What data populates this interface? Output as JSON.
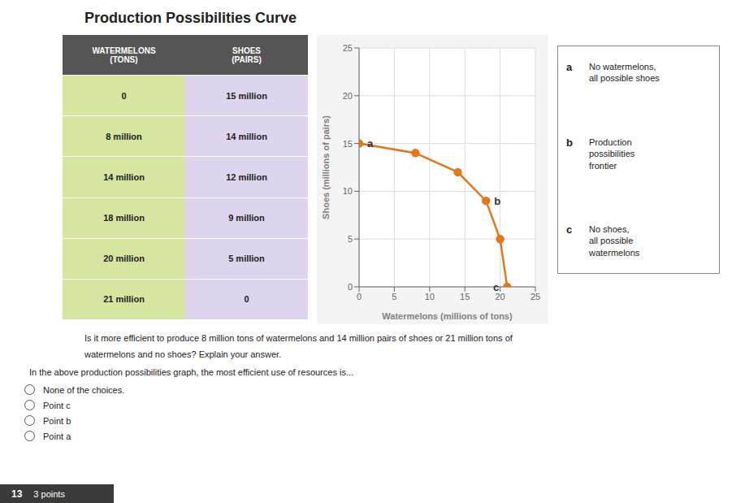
{
  "chart_data": {
    "type": "line",
    "title": "Production Possibilities Curve",
    "x": [
      0,
      8,
      14,
      18,
      20,
      21
    ],
    "values": [
      15,
      14,
      12,
      9,
      5,
      0
    ],
    "color": "#e07820",
    "marker": "circle",
    "xlabel": "Watermelons (millions of tons)",
    "ylabel": "Shoes (millions of pairs)",
    "xlim": [
      0,
      25
    ],
    "ylim": [
      0,
      25
    ],
    "xticks": [
      0,
      5,
      10,
      15,
      20,
      25
    ],
    "yticks": [
      0,
      5,
      10,
      15,
      20,
      25
    ],
    "grid": true,
    "annotations": [
      {
        "text": "a",
        "x": 0,
        "y": 15
      },
      {
        "text": "b",
        "x": 18,
        "y": 9
      },
      {
        "text": "c",
        "x": 21,
        "y": 0
      }
    ],
    "table": {
      "headers": [
        "WATERMELONS\n(TONS)",
        "SHOES\n(PAIRS)"
      ],
      "rows": [
        [
          "0",
          "15 million"
        ],
        [
          "8 million",
          "14 million"
        ],
        [
          "14 million",
          "12 million"
        ],
        [
          "18 million",
          "9 million"
        ],
        [
          "20 million",
          "5 million"
        ],
        [
          "21 million",
          "0"
        ]
      ]
    },
    "key": [
      {
        "label": "a",
        "text": "No watermelons,\nall possible shoes"
      },
      {
        "label": "b",
        "text": "Production\npossibilities\nfrontier"
      },
      {
        "label": "c",
        "text": "No shoes,\nall possible\nwatermelons"
      }
    ],
    "question": [
      "Is it more efficient to produce 8 million tons of watermelons and 14 million pairs of shoes or 21 million tons of",
      "watermelons and no shoes? Explain your answer."
    ],
    "instruction": "In the above production possibilities graph, the most efficient use of resources is...",
    "choices": [
      "None of the choices.",
      "Point c",
      "Point b",
      "Point a"
    ],
    "footer": {
      "label": "13",
      "points": "3 points"
    }
  }
}
